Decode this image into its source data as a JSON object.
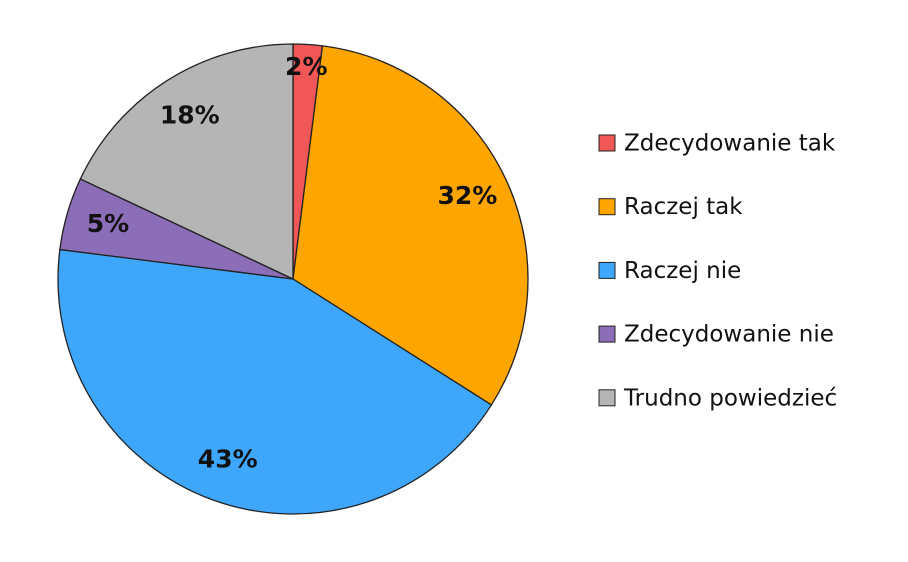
{
  "chart_data": {
    "type": "pie",
    "categories": [
      "Zdecydowanie tak",
      "Raczej tak",
      "Raczej nie",
      "Zdecydowanie nie",
      "Trudno powiedzieć"
    ],
    "values": [
      2,
      32,
      43,
      5,
      18
    ],
    "value_labels": [
      "2%",
      "32%",
      "43%",
      "5%",
      "18%"
    ],
    "colors": [
      "#f25757",
      "#ffa500",
      "#3ea7fc",
      "#8c6db7",
      "#b5b5b5"
    ],
    "legend": "right"
  }
}
